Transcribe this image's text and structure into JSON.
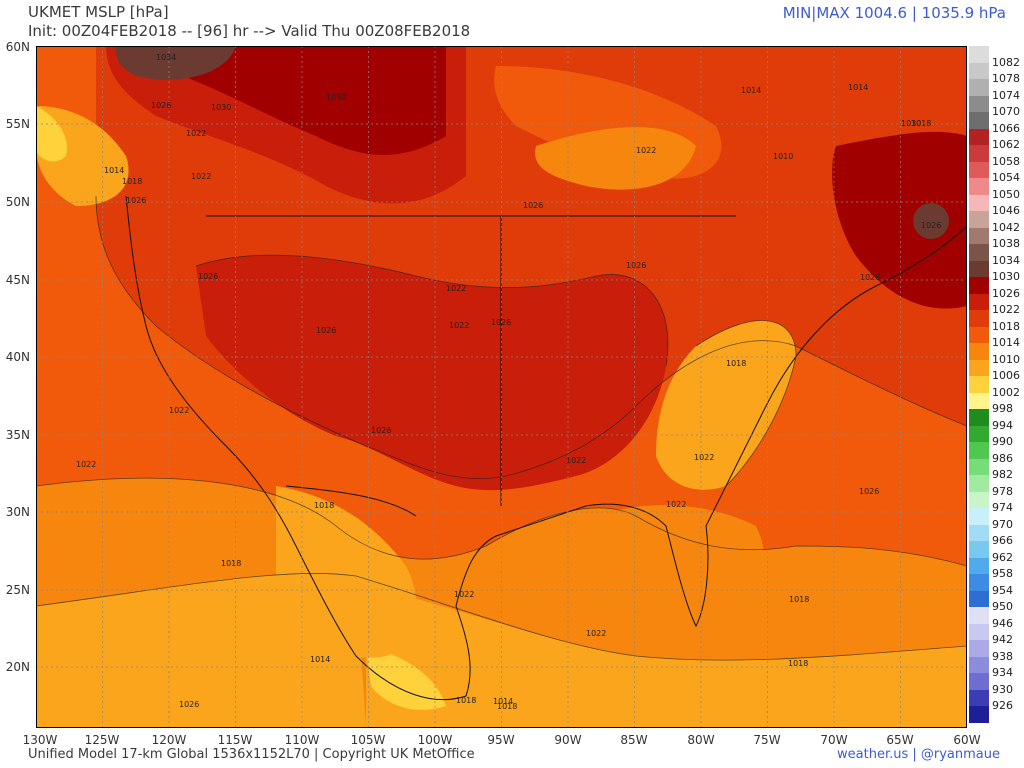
{
  "header": {
    "title": "UKMET MSLP [hPa]",
    "init": "Init: 00Z04FEB2018 -- [96] hr --> Valid Thu 00Z08FEB2018",
    "minmax": "MIN|MAX 1004.6 | 1035.9 hPa"
  },
  "footer": {
    "left": "Unified Model 17-km Global 1536x1152L70 | Copyright UK MetOffice",
    "right": "weather.us | @ryanmaue"
  },
  "axes": {
    "lat_labels": [
      "60N",
      "55N",
      "50N",
      "45N",
      "40N",
      "35N",
      "30N",
      "25N",
      "20N"
    ],
    "lon_labels": [
      "130W",
      "125W",
      "120W",
      "115W",
      "110W",
      "105W",
      "100W",
      "95W",
      "90W",
      "85W",
      "80W",
      "75W",
      "70W",
      "65W",
      "60W"
    ]
  },
  "legend": {
    "levels": [
      "1082",
      "1078",
      "1074",
      "1070",
      "1066",
      "1062",
      "1058",
      "1054",
      "1050",
      "1046",
      "1042",
      "1038",
      "1034",
      "1030",
      "1026",
      "1022",
      "1018",
      "1014",
      "1010",
      "1006",
      "1002",
      "998",
      "994",
      "990",
      "986",
      "982",
      "978",
      "974",
      "970",
      "966",
      "962",
      "958",
      "954",
      "950",
      "946",
      "942",
      "938",
      "934",
      "930",
      "926"
    ],
    "colors": [
      "#dcdcdc",
      "#c8c8c8",
      "#b0b0b0",
      "#8c8c8c",
      "#6e6e6e",
      "#b22222",
      "#cc3b3b",
      "#e05a5a",
      "#f08a8a",
      "#f5b7b7",
      "#c8a39a",
      "#a07a6e",
      "#7a5448",
      "#6b3a30",
      "#a00000",
      "#c81e0a",
      "#e03c0a",
      "#f05a0a",
      "#f7860f",
      "#fba51c",
      "#ffd23c",
      "#fff58c",
      "#1e8c1e",
      "#32aa32",
      "#50c850",
      "#78dc78",
      "#a0eba0",
      "#c8f5c8",
      "#c8f0fa",
      "#a0dcf5",
      "#78c8f0",
      "#50aaeb",
      "#3c8ce6",
      "#2d6ed2",
      "#e0e0f5",
      "#c8c8f0",
      "#aaaae6",
      "#8c8cdc",
      "#6e6ed2",
      "#3c3cb4",
      "#1e1e96"
    ]
  },
  "map_labels": [
    "1034",
    "1030",
    "1030",
    "1026",
    "1022",
    "1022",
    "1014",
    "1018",
    "1026",
    "1026",
    "1026",
    "1022",
    "1022",
    "1018",
    "1018",
    "1014",
    "1026",
    "1022",
    "1026",
    "1026",
    "1022",
    "1018",
    "1018",
    "1022",
    "1026",
    "1022",
    "1014",
    "1010",
    "1014",
    "1018",
    "1018",
    "1022",
    "1022",
    "1018",
    "1026",
    "1030",
    "1026",
    "1026",
    "1022",
    "1014",
    "1018",
    "1022",
    "1026"
  ]
}
